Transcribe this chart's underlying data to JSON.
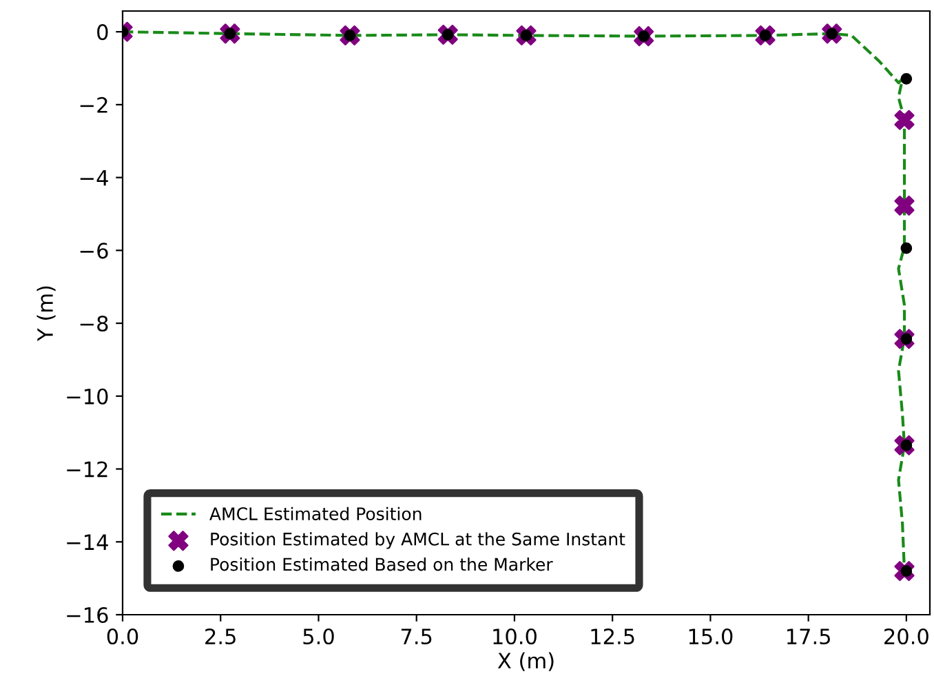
{
  "chart_data": {
    "type": "line",
    "xlabel": "X (m)",
    "ylabel": "Y (m)",
    "xlim": [
      0,
      20.6
    ],
    "ylim": [
      -16,
      0.57
    ],
    "xticks": [
      {
        "value": 0,
        "label": "0.0"
      },
      {
        "value": 2.5,
        "label": "2.5"
      },
      {
        "value": 5,
        "label": "5.0"
      },
      {
        "value": 7.5,
        "label": "7.5"
      },
      {
        "value": 10,
        "label": "10.0"
      },
      {
        "value": 12.5,
        "label": "12.5"
      },
      {
        "value": 15,
        "label": "15.0"
      },
      {
        "value": 17.5,
        "label": "17.5"
      },
      {
        "value": 20,
        "label": "20.0"
      }
    ],
    "yticks": [
      {
        "value": 0,
        "label": "0"
      },
      {
        "value": -2,
        "label": "−2"
      },
      {
        "value": -4,
        "label": "−4"
      },
      {
        "value": -6,
        "label": "−6"
      },
      {
        "value": -8,
        "label": "−8"
      },
      {
        "value": -10,
        "label": "−10"
      },
      {
        "value": -12,
        "label": "−12"
      },
      {
        "value": -14,
        "label": "−14"
      },
      {
        "value": -16,
        "label": "−16"
      }
    ],
    "grid": false,
    "legend": "bottom left",
    "series": [
      {
        "name": "AMCL Estimated Position",
        "line_style": "dashed",
        "marker": "none",
        "color": "#1a8a1a",
        "x": [
          0,
          2.74,
          5.8,
          8.3,
          10.3,
          13.3,
          16.4,
          18.1,
          18.6,
          19.3,
          19.8,
          19.9,
          19.8,
          19.95,
          19.95,
          19.95,
          19.8,
          19.95,
          19.95,
          19.8,
          19.9,
          19.95,
          19.8,
          19.9,
          19.95
        ],
        "values": [
          0,
          -0.05,
          -0.1,
          -0.08,
          -0.1,
          -0.12,
          -0.1,
          -0.05,
          -0.1,
          -0.8,
          -1.4,
          -1.3,
          -1.8,
          -2.4,
          -4.8,
          -5.9,
          -6.5,
          -7.5,
          -8.4,
          -9.3,
          -10.5,
          -11.35,
          -12.3,
          -13.5,
          -14.8
        ]
      },
      {
        "name": "Position Estimated by AMCL at the Same Instant",
        "type": "scatter",
        "marker": "cross",
        "color": "#800080",
        "x": [
          0,
          2.74,
          5.8,
          8.3,
          10.3,
          13.3,
          16.4,
          18.1,
          19.95,
          19.95,
          19.95,
          19.95,
          19.95
        ],
        "values": [
          0,
          -0.05,
          -0.1,
          -0.08,
          -0.1,
          -0.12,
          -0.1,
          -0.05,
          -2.42,
          -4.77,
          -8.43,
          -11.35,
          -14.8
        ]
      },
      {
        "name": "Position Estimated Based on the Marker",
        "type": "scatter",
        "marker": "circle",
        "color": "#000000",
        "x": [
          0,
          2.74,
          5.8,
          8.3,
          10.3,
          13.3,
          16.4,
          18.1,
          20.0,
          20.0,
          20.0,
          20.0,
          20.0
        ],
        "values": [
          0,
          -0.05,
          -0.1,
          -0.08,
          -0.1,
          -0.12,
          -0.1,
          -0.05,
          -1.29,
          -5.94,
          -8.43,
          -11.35,
          -14.8
        ]
      }
    ]
  }
}
